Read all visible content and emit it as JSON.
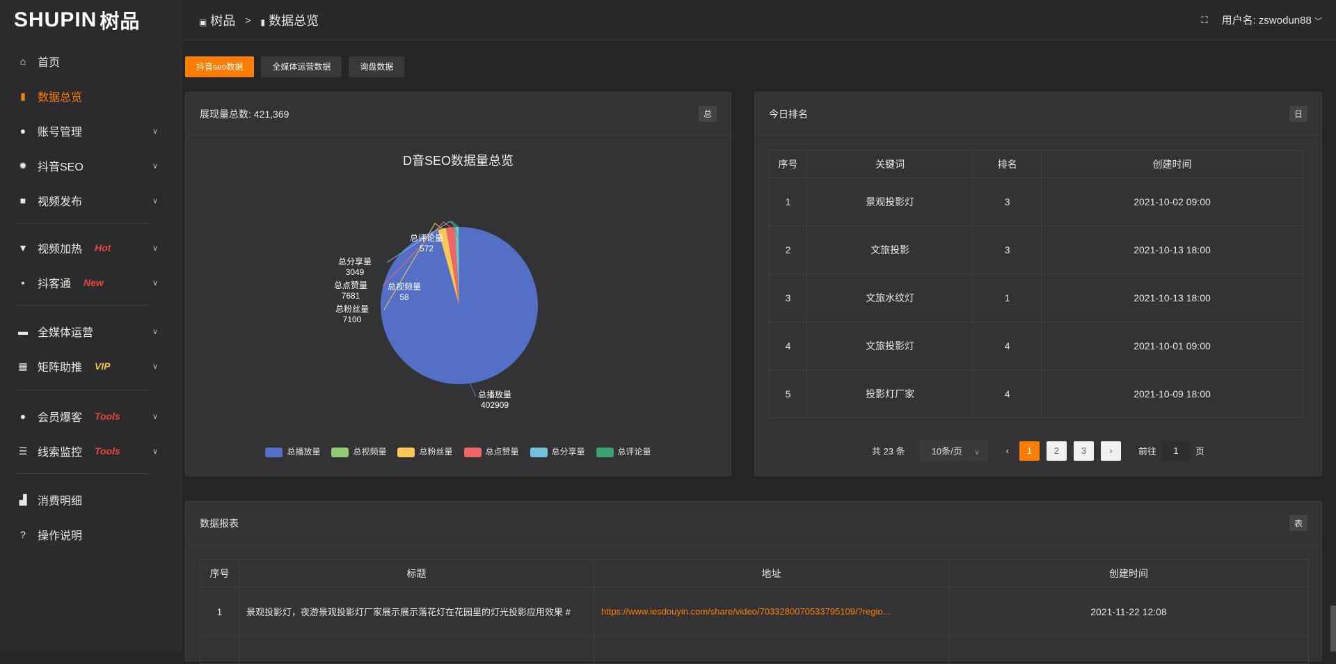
{
  "logo": {
    "text": "SHUPIN",
    "cn": "树品"
  },
  "sidebar": {
    "items": [
      {
        "label": "首页",
        "icon": "home-icon",
        "glyph": "⌂"
      },
      {
        "label": "数据总览",
        "icon": "bar-chart-icon",
        "glyph": "▮",
        "active": true
      },
      {
        "label": "账号管理",
        "icon": "user-icon",
        "glyph": "●",
        "chevron": true
      },
      {
        "label": "抖音SEO",
        "icon": "gear-icon",
        "glyph": "✹",
        "chevron": true
      },
      {
        "label": "视频发布",
        "icon": "camera-icon",
        "glyph": "■",
        "chevron": true
      },
      {
        "label": "视频加热",
        "icon": "monitor-icon",
        "glyph": "▼",
        "badge": "Hot",
        "badge_color": "#e8463f",
        "chevron": true
      },
      {
        "label": "抖客通",
        "icon": "chat-icon",
        "glyph": "▪",
        "badge": "New",
        "badge_color": "#e8463f",
        "chevron": true
      },
      {
        "label": "全媒体运营",
        "icon": "desktop-icon",
        "glyph": "▬",
        "chevron": true
      },
      {
        "label": "矩阵助推",
        "icon": "grid-icon",
        "glyph": "▦",
        "badge": "VIP",
        "badge_color": "#f5c342",
        "chevron": true
      },
      {
        "label": "会员爆客",
        "icon": "user-icon",
        "glyph": "●",
        "badge": "Tools",
        "badge_color": "#e8463f",
        "chevron": true
      },
      {
        "label": "线索监控",
        "icon": "sliders-icon",
        "glyph": "☰",
        "badge": "Tools",
        "badge_color": "#e8463f",
        "chevron": true
      },
      {
        "label": "消费明细",
        "icon": "wallet-icon",
        "glyph": "▟"
      },
      {
        "label": "操作说明",
        "icon": "help-icon",
        "glyph": "?"
      }
    ]
  },
  "header": {
    "breadcrumb": [
      "树品",
      "数据总览"
    ],
    "user_label": "用户名: zswodun88",
    "fullscreen_icon": "fullscreen-icon"
  },
  "tabs": [
    {
      "label": "抖音seo数据",
      "active": true
    },
    {
      "label": "全媒体运营数据"
    },
    {
      "label": "询盘数据"
    }
  ],
  "pie_card": {
    "title": "展现量总数: 421,369",
    "tag": "总"
  },
  "chart_data": {
    "type": "pie",
    "title": "D音SEO数据量总览",
    "legend_position": "bottom",
    "slices": [
      {
        "name": "总播放量",
        "value": 402909,
        "color": "#5470c6"
      },
      {
        "name": "总视频量",
        "value": 58,
        "color": "#91cc75"
      },
      {
        "name": "总粉丝量",
        "value": 7100,
        "color": "#fac858"
      },
      {
        "name": "总点赞量",
        "value": 7681,
        "color": "#ee6666"
      },
      {
        "name": "总分享量",
        "value": 3049,
        "color": "#73c0de"
      },
      {
        "name": "总评论量",
        "value": 572,
        "color": "#3ba272"
      }
    ]
  },
  "rank_card": {
    "title": "今日排名",
    "tag": "日",
    "columns": [
      "序号",
      "关键词",
      "排名",
      "创建时间"
    ],
    "rows": [
      [
        "1",
        "景观投影灯",
        "3",
        "2021-10-02 09:00"
      ],
      [
        "2",
        "文旅投影",
        "3",
        "2021-10-13 18:00"
      ],
      [
        "3",
        "文旅水纹灯",
        "1",
        "2021-10-13 18:00"
      ],
      [
        "4",
        "文旅投影灯",
        "4",
        "2021-10-01 09:00"
      ],
      [
        "5",
        "投影灯厂家",
        "4",
        "2021-10-09 18:00"
      ]
    ],
    "pager": {
      "total": "共 23 条",
      "page_size": "10条/页",
      "pages": [
        "1",
        "2",
        "3"
      ],
      "current": "1",
      "goto_label": "前往",
      "goto_value": "1",
      "page_suffix": "页"
    }
  },
  "report_card": {
    "title": "数据报表",
    "tag": "表",
    "columns": [
      "序号",
      "标题",
      "地址",
      "创建时间"
    ],
    "rows": [
      [
        "1",
        "景观投影灯，夜游景观投影灯厂家展示展示落花灯在花园里的灯光投影应用效果 #",
        "https://www.iesdouyin.com/share/video/7033280070533795109/?regio...",
        "2021-11-22 12:08"
      ]
    ]
  },
  "colors": {
    "accent": "#ff7d00",
    "link": "#ff7d00"
  }
}
